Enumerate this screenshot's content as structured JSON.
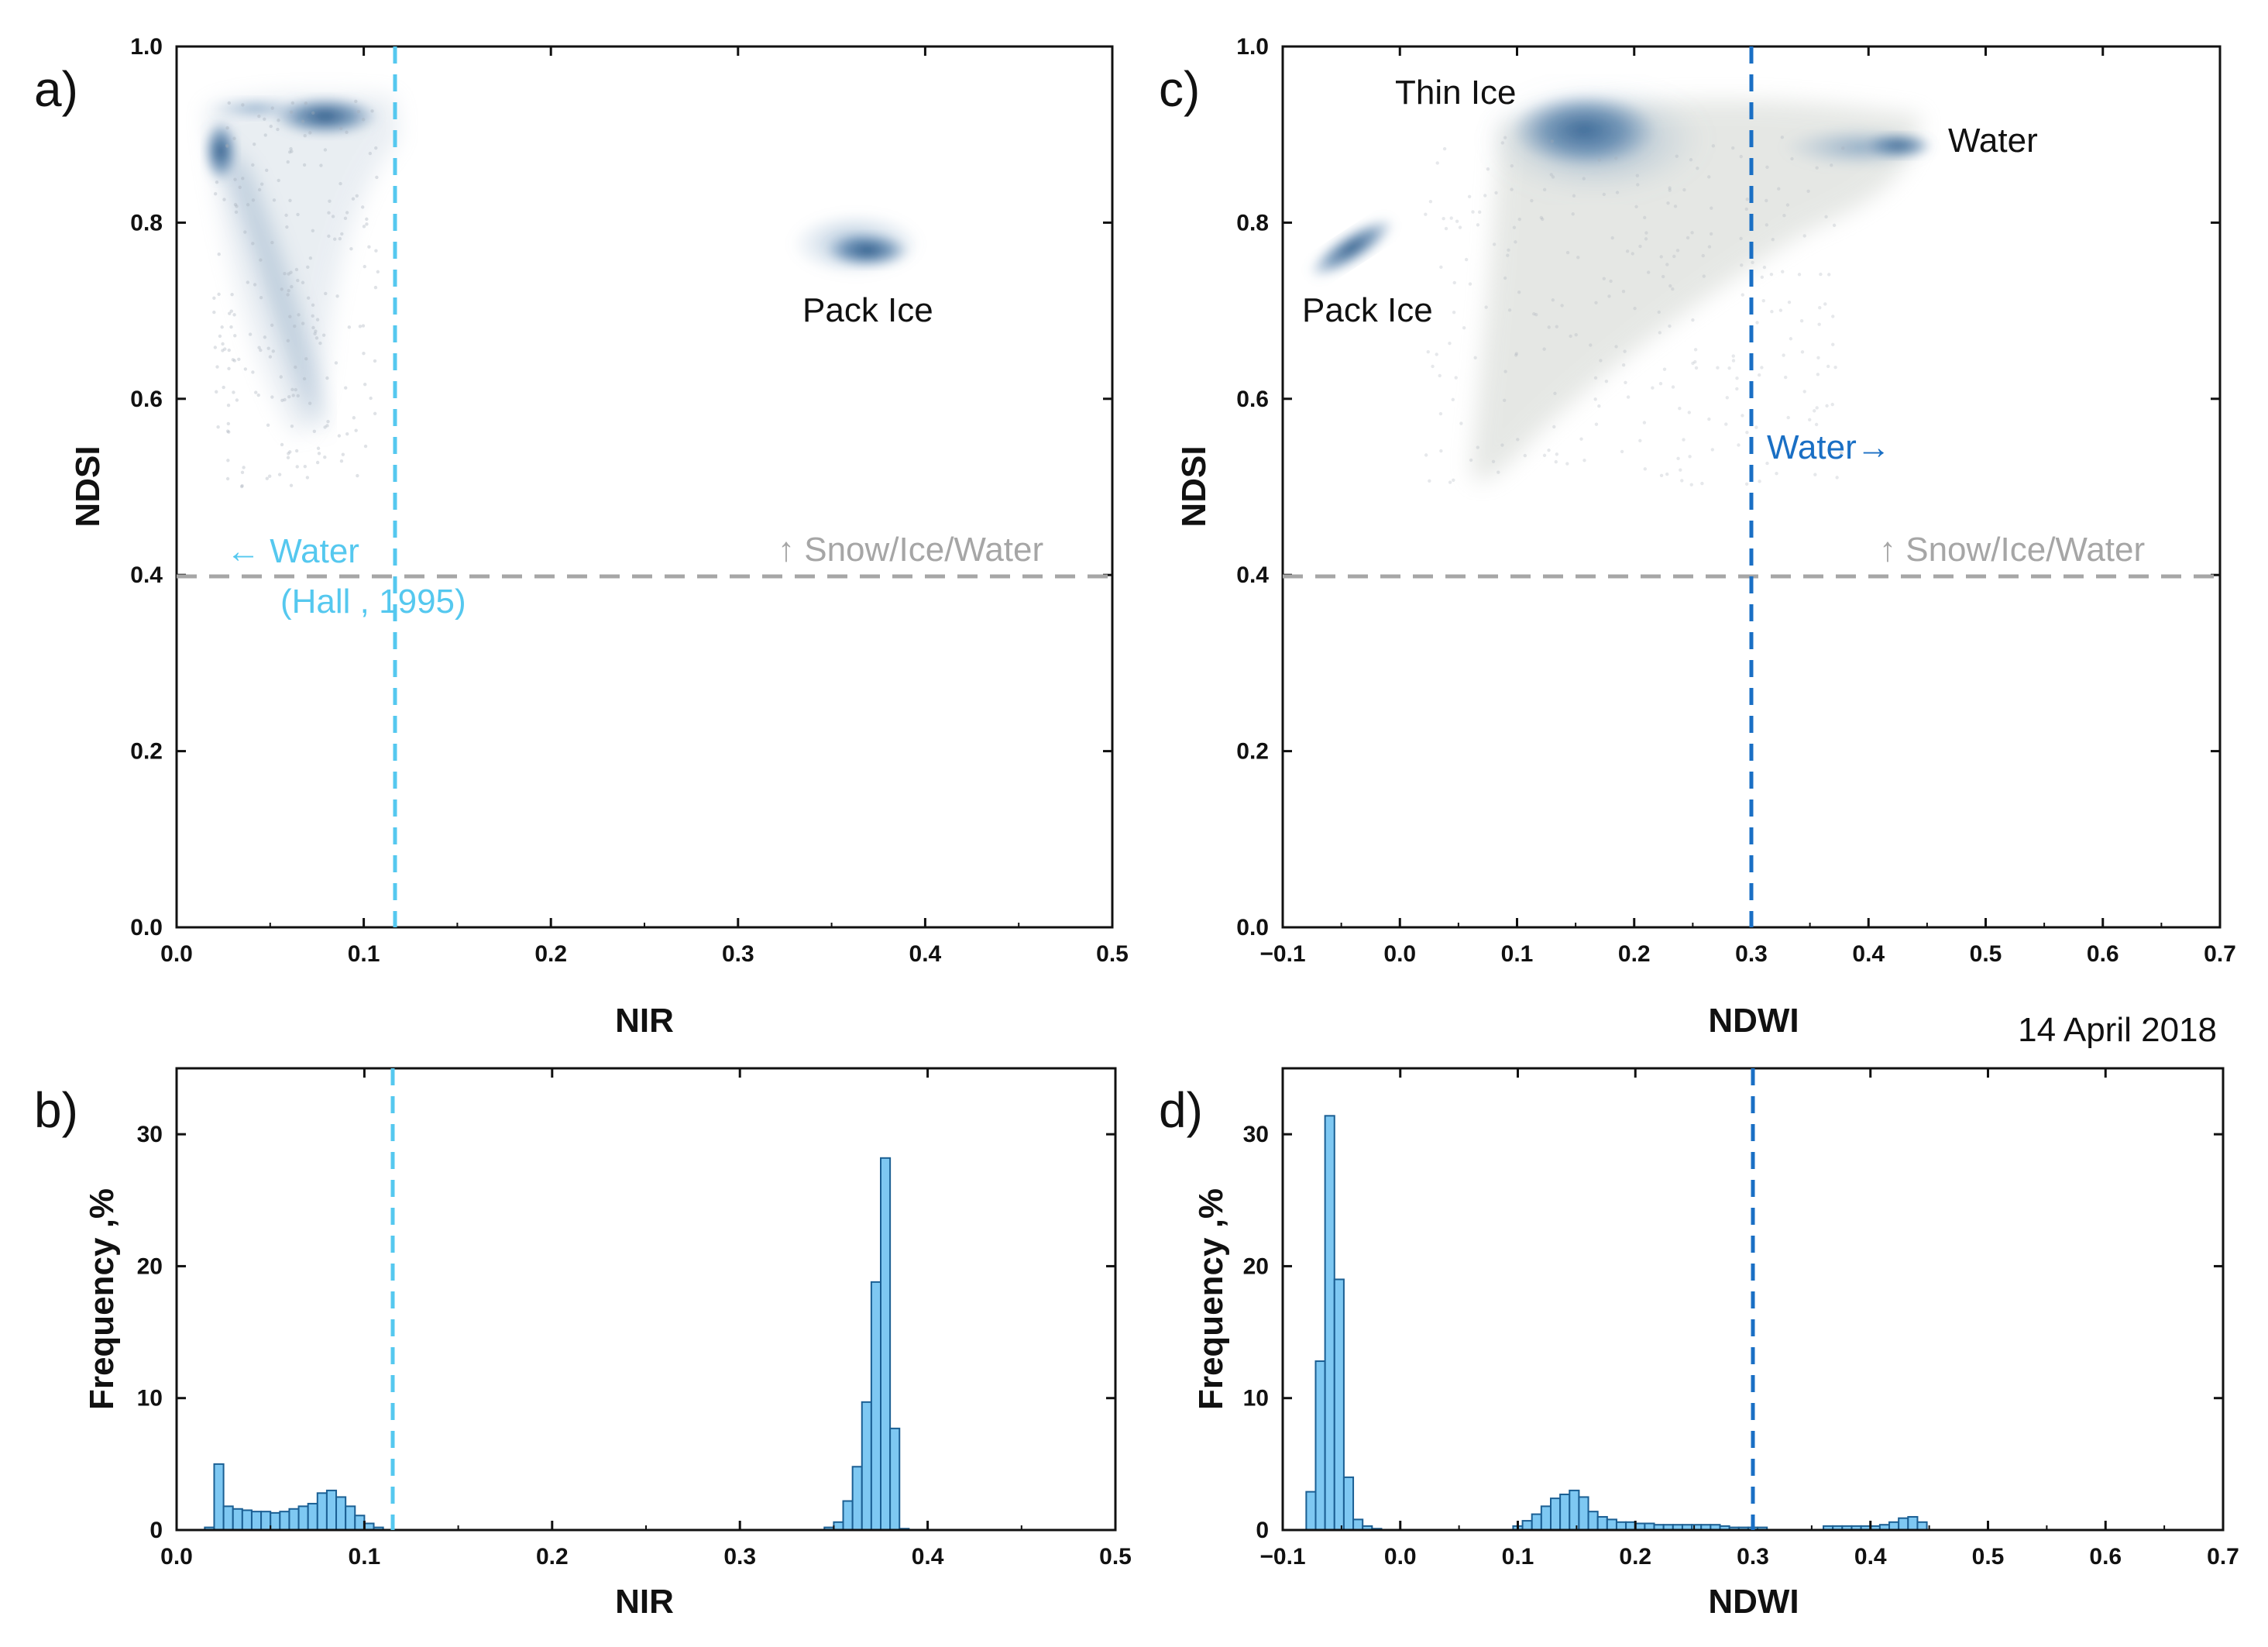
{
  "colors": {
    "cyan_threshold": "#55c8ef",
    "blue_threshold": "#1a6fc4",
    "gray_threshold": "#a6a6a6",
    "bar_fill": "#7ec8f2",
    "bar_edge": "#1b5f93",
    "scatter_dense": "#3f6f9e",
    "scatter_sparse": "#a4adb8"
  },
  "date_label": "14 April 2018",
  "chart_data": [
    {
      "id": "a",
      "panel_label": "a)",
      "type": "scatter",
      "xlabel": "NIR",
      "ylabel": "NDSI",
      "xlim": [
        0,
        0.5
      ],
      "ylim": [
        0,
        1.0
      ],
      "xticks": [
        "0.0",
        "0.1",
        "0.2",
        "0.3",
        "0.4",
        "0.5"
      ],
      "yticks": [
        "0.0",
        "0.2",
        "0.4",
        "0.6",
        "0.8",
        "1.0"
      ],
      "thresholds": [
        {
          "axis": "x",
          "value": 0.115,
          "color": "cyan_threshold"
        },
        {
          "axis": "y",
          "value": 0.4,
          "color": "gray_threshold"
        }
      ],
      "annotations": [
        {
          "text": "← Water",
          "x": 0.03,
          "y": 0.42,
          "color": "cyan_threshold"
        },
        {
          "text": "(Hall , 1995)",
          "x": 0.055,
          "y": 0.365,
          "color": "cyan_threshold"
        },
        {
          "text": "↑ Snow/Ice/Water",
          "x": 0.32,
          "y": 0.42,
          "color": "gray_threshold"
        },
        {
          "text": "Pack Ice",
          "x": 0.33,
          "y": 0.68,
          "color": "#111111"
        }
      ],
      "clusters": [
        {
          "name": "low-NIR cluster",
          "x": [
            0.02,
            0.11
          ],
          "y": [
            0.5,
            0.94
          ],
          "density": "high"
        },
        {
          "name": "Pack Ice",
          "x": [
            0.34,
            0.4
          ],
          "y": [
            0.74,
            0.79
          ],
          "density": "high"
        }
      ]
    },
    {
      "id": "b",
      "panel_label": "b)",
      "type": "bar",
      "xlabel": "NIR",
      "ylabel": "Frequency ,%",
      "xlim": [
        0,
        0.5
      ],
      "ylim": [
        0,
        35
      ],
      "xticks": [
        "0.0",
        "0.1",
        "0.2",
        "0.3",
        "0.4",
        "0.5"
      ],
      "yticks": [
        "0",
        "10",
        "20",
        "30"
      ],
      "bin_width": 0.005,
      "thresholds": [
        {
          "axis": "x",
          "value": 0.115,
          "color": "cyan_threshold"
        }
      ],
      "bin_starts": [
        0.015,
        0.02,
        0.025,
        0.03,
        0.035,
        0.04,
        0.045,
        0.05,
        0.055,
        0.06,
        0.065,
        0.07,
        0.075,
        0.08,
        0.085,
        0.09,
        0.095,
        0.1,
        0.105,
        0.345,
        0.35,
        0.355,
        0.36,
        0.365,
        0.37,
        0.375,
        0.38,
        0.385
      ],
      "values": [
        0.2,
        5.0,
        1.8,
        1.6,
        1.5,
        1.4,
        1.4,
        1.3,
        1.4,
        1.6,
        1.8,
        2.0,
        2.8,
        3.0,
        2.5,
        1.8,
        1.1,
        0.5,
        0.2,
        0.2,
        0.6,
        2.2,
        4.8,
        9.7,
        18.8,
        28.2,
        7.7,
        0.1
      ]
    },
    {
      "id": "c",
      "panel_label": "c)",
      "type": "scatter",
      "xlabel": "NDWI",
      "ylabel": "NDSI",
      "xlim": [
        -0.1,
        0.7
      ],
      "ylim": [
        0,
        1.0
      ],
      "xticks": [
        "−0.1",
        "0.0",
        "0.1",
        "0.2",
        "0.3",
        "0.4",
        "0.5",
        "0.6",
        "0.7"
      ],
      "yticks": [
        "0.0",
        "0.2",
        "0.4",
        "0.6",
        "0.8",
        "1.0"
      ],
      "thresholds": [
        {
          "axis": "x",
          "value": 0.3,
          "color": "blue_threshold"
        },
        {
          "axis": "y",
          "value": 0.4,
          "color": "gray_threshold"
        }
      ],
      "annotations": [
        {
          "text": "Thin Ice",
          "x": -0.01,
          "y": 0.95,
          "color": "#111111"
        },
        {
          "text": "Water",
          "x": 0.47,
          "y": 0.89,
          "color": "#111111"
        },
        {
          "text": "Pack Ice",
          "x": -0.085,
          "y": 0.68,
          "color": "#111111"
        },
        {
          "text": "Water→",
          "x": 0.305,
          "y": 0.52,
          "color": "blue_threshold"
        },
        {
          "text": "↑ Snow/Ice/Water",
          "x": 0.41,
          "y": 0.42,
          "color": "gray_threshold"
        }
      ],
      "clusters": [
        {
          "name": "Pack Ice",
          "x": [
            -0.07,
            0.0
          ],
          "y": [
            0.75,
            0.81
          ],
          "density": "high"
        },
        {
          "name": "Thin Ice",
          "x": [
            0.11,
            0.19
          ],
          "y": [
            0.85,
            0.94
          ],
          "density": "high"
        },
        {
          "name": "Water",
          "x": [
            0.4,
            0.45
          ],
          "y": [
            0.87,
            0.9
          ],
          "density": "high"
        },
        {
          "name": "mixed",
          "x": [
            0.06,
            0.45
          ],
          "y": [
            0.45,
            0.94
          ],
          "density": "low"
        }
      ]
    },
    {
      "id": "d",
      "panel_label": "d)",
      "type": "bar",
      "xlabel": "NDWI",
      "ylabel": "Frequency ,%",
      "xlim": [
        -0.1,
        0.7
      ],
      "ylim": [
        0,
        35
      ],
      "xticks": [
        "−0.1",
        "0.0",
        "0.1",
        "0.2",
        "0.3",
        "0.4",
        "0.5",
        "0.6",
        "0.7"
      ],
      "yticks": [
        "0",
        "10",
        "20",
        "30"
      ],
      "bin_width": 0.008,
      "thresholds": [
        {
          "axis": "x",
          "value": 0.3,
          "color": "blue_threshold"
        }
      ],
      "bin_starts": [
        -0.08,
        -0.072,
        -0.064,
        -0.056,
        -0.048,
        -0.04,
        -0.032,
        -0.024,
        0.096,
        0.104,
        0.112,
        0.12,
        0.128,
        0.136,
        0.144,
        0.152,
        0.16,
        0.168,
        0.176,
        0.184,
        0.192,
        0.2,
        0.208,
        0.216,
        0.224,
        0.232,
        0.24,
        0.248,
        0.256,
        0.264,
        0.272,
        0.28,
        0.288,
        0.296,
        0.304,
        0.36,
        0.368,
        0.376,
        0.384,
        0.392,
        0.4,
        0.408,
        0.416,
        0.424,
        0.432,
        0.44
      ],
      "values": [
        2.9,
        12.8,
        31.4,
        19.0,
        4.0,
        0.8,
        0.3,
        0.1,
        0.3,
        0.7,
        1.2,
        1.8,
        2.4,
        2.7,
        3.0,
        2.5,
        1.4,
        1.0,
        0.8,
        0.6,
        0.6,
        0.5,
        0.5,
        0.4,
        0.4,
        0.4,
        0.4,
        0.4,
        0.4,
        0.4,
        0.3,
        0.2,
        0.2,
        0.2,
        0.2,
        0.3,
        0.3,
        0.3,
        0.3,
        0.3,
        0.3,
        0.4,
        0.6,
        0.9,
        1.0,
        0.6
      ]
    }
  ]
}
